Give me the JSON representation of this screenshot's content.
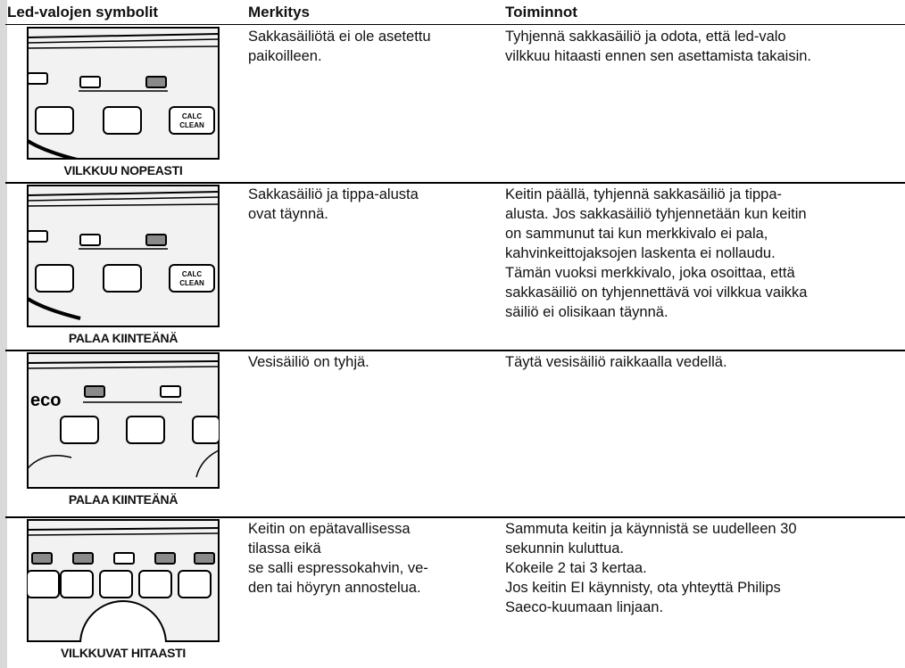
{
  "header": {
    "columns": [
      "Led-valojen symbolit",
      "Merkitys",
      "Toiminnot"
    ]
  },
  "rows": [
    {
      "panel_text": [
        "CALC",
        "CLEAN"
      ],
      "led_state": "VILKKUU NOPEASTI",
      "meaning": [
        "Sakkasäiliötä ei ole asetettu",
        "paikoilleen."
      ],
      "actions": [
        "Tyhjennä sakkasäiliö ja odota, että led-valo",
        "vilkkuu hitaasti ennen sen asettamista takaisin."
      ]
    },
    {
      "panel_text": [
        "CALC",
        "CLEAN"
      ],
      "led_state": "PALAA KIINTEÄNÄ",
      "meaning": [
        "Sakkasäiliö ja tippa-alusta",
        "ovat täynnä."
      ],
      "actions": [
        "Keitin päällä, tyhjennä sakkasäiliö ja tippa-",
        "alusta. Jos sakkasäiliö tyhjennetään kun keitin",
        "on sammunut tai kun merkkivalo ei pala,",
        "kahvinkeittojaksojen laskenta ei nollaudu.",
        "Tämän vuoksi merkkivalo, joka osoittaa, että",
        "sakkasäiliö on tyhjennettävä voi vilkkua vaikka",
        "säiliö ei olisikaan täynnä."
      ]
    },
    {
      "panel_text": [
        "eco"
      ],
      "led_state": "PALAA KIINTEÄNÄ",
      "meaning": [
        "Vesisäiliö on tyhjä."
      ],
      "actions": [
        "Täytä vesisäiliö raikkaalla vedellä."
      ]
    },
    {
      "led_state": "VILKKUVAT HITAASTI",
      "meaning": [
        "Keitin on epätavallisessa",
        "tilassa eikä",
        "se salli espressokahvin, ve-",
        "den tai höyryn annostelua."
      ],
      "actions": [
        "Sammuta keitin ja käynnistä se uudelleen 30",
        "sekunnin kuluttua.",
        "Kokeile 2 tai 3 kertaa.",
        "Jos keitin EI käynnisty, ota yhteyttä Philips",
        "Saeco-kuumaan linjaan."
      ]
    }
  ]
}
